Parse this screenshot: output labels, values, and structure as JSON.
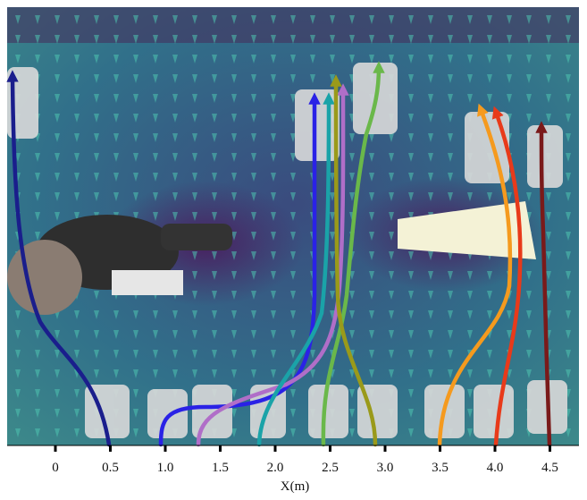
{
  "figure": {
    "x_axis": {
      "label": "X(m)",
      "ticks": [
        0,
        0.5,
        {
          "value": 1,
          "label": "1.0"
        },
        1.5,
        {
          "value": 2,
          "label": "2.0"
        },
        2.5,
        {
          "value": 3,
          "label": "3.0"
        },
        3.5,
        {
          "value": 4,
          "label": "4.0"
        },
        4.5
      ]
    }
  }
}
